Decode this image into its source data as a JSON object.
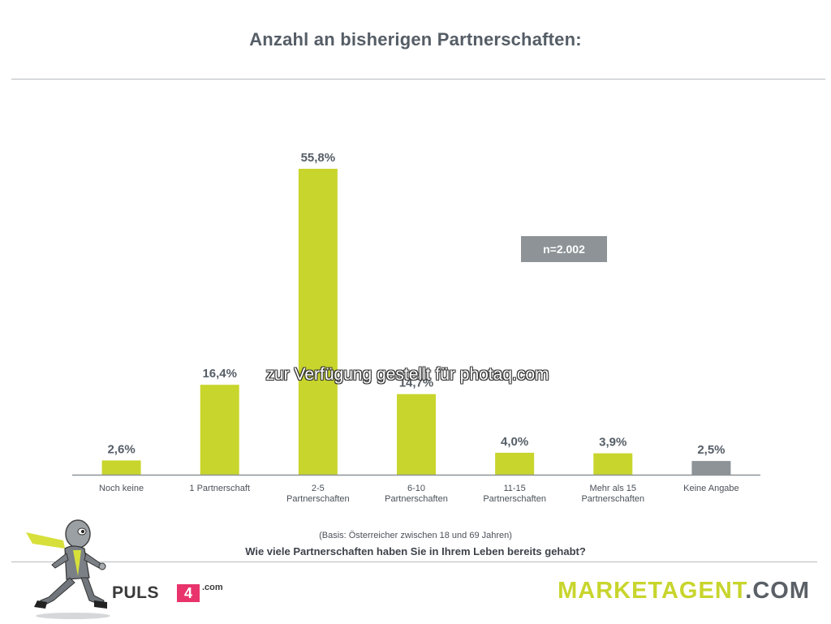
{
  "header": {
    "title": "Anzahl an bisherigen Partnerschaften:"
  },
  "badge": {
    "text": "n=2.002"
  },
  "watermark": {
    "text": "zur Verfügung gestellt für photaq.com"
  },
  "footer": {
    "basis": "(Basis: Österreicher zwischen 18 und 69 Jahren)",
    "question": "Wie viele Partnerschaften haben Sie in Ihrem Leben bereits gehabt?",
    "puls4_text": "PULS",
    "puls4_mark": "4",
    "puls4_com": ".com",
    "brand_part1": "MARKETAGENT",
    "brand_part2": ".COM"
  },
  "chart_data": {
    "type": "bar",
    "title": "Anzahl an bisherigen Partnerschaften:",
    "xlabel": "",
    "ylabel": "",
    "ylim": [
      0,
      60
    ],
    "grid": false,
    "categories": [
      [
        "Noch keine"
      ],
      [
        "1 Partnerschaft"
      ],
      [
        "2-5",
        "Partnerschaften"
      ],
      [
        "6-10",
        "Partnerschaften"
      ],
      [
        "11-15",
        "Partnerschaften"
      ],
      [
        "Mehr als 15",
        "Partnerschaften"
      ],
      [
        "Keine Angabe"
      ]
    ],
    "values": [
      2.6,
      16.4,
      55.8,
      14.7,
      4.0,
      3.9,
      2.5
    ],
    "value_labels": [
      "2,6%",
      "16,4%",
      "55,8%",
      "14,7%",
      "4,0%",
      "3,9%",
      "2,5%"
    ],
    "colors": [
      "#c8d52d",
      "#c8d52d",
      "#c8d52d",
      "#c8d52d",
      "#c8d52d",
      "#c8d52d",
      "#8d9397"
    ],
    "axis_color": "#8d9397"
  }
}
